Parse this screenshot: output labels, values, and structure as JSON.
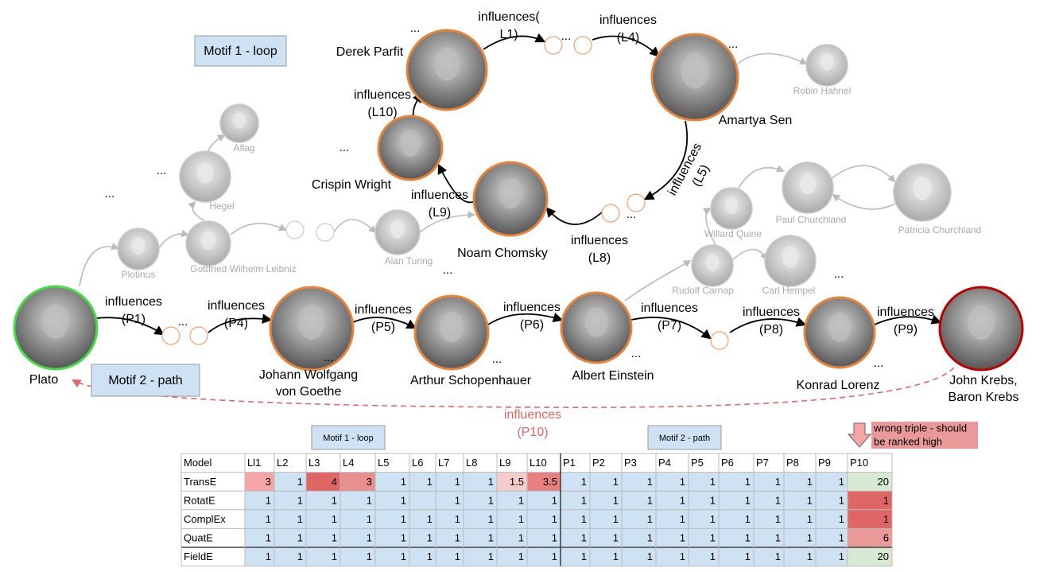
{
  "motifs": [
    "Motif 1 - loop",
    "Motif 2 - path"
  ],
  "ellipsis": "...",
  "nodes": [
    {
      "label": [
        "Plato"
      ]
    },
    {
      "label": [
        "Johann Wolfgang",
        "von Goethe"
      ]
    },
    {
      "label": [
        "Arthur Schopenhauer"
      ]
    },
    {
      "label": [
        "Albert Einstein"
      ]
    },
    {
      "label": [
        "Konrad Lorenz"
      ]
    },
    {
      "label": [
        "John Krebs,",
        "Baron Krebs"
      ]
    },
    {
      "label": [
        "Derek Parfit"
      ]
    },
    {
      "label": [
        "Amartya Sen"
      ]
    },
    {
      "label": [
        "Crispin Wright"
      ]
    },
    {
      "label": [
        "Noam Chomsky"
      ]
    },
    {
      "label": [
        "Robin Hahnel"
      ]
    },
    {
      "label": [
        "Aflag"
      ]
    },
    {
      "label": [
        "Hegel"
      ]
    },
    {
      "label": [
        "Plotinus"
      ]
    },
    {
      "label": [
        "Gottfried Wilhelm Leibniz"
      ]
    },
    {
      "label": [
        "Alan Turing"
      ]
    },
    {
      "label": [
        "Willard Quine"
      ]
    },
    {
      "label": [
        "Paul Churchland"
      ]
    },
    {
      "label": [
        "Patricia Churchland"
      ]
    },
    {
      "label": [
        "Rudolf Carnap"
      ]
    },
    {
      "label": [
        "Carl Hempel"
      ]
    }
  ],
  "edges": [
    {
      "lines": [
        "influences",
        "(P1)"
      ]
    },
    {
      "lines": [
        "influences",
        "(P4)"
      ]
    },
    {
      "lines": [
        "influences",
        "(P5)"
      ]
    },
    {
      "lines": [
        "influences",
        "(P6)"
      ]
    },
    {
      "lines": [
        "influences",
        "(P7)"
      ]
    },
    {
      "lines": [
        "influences",
        "(P8)"
      ]
    },
    {
      "lines": [
        "influences",
        "(P9)"
      ]
    },
    {
      "lines": [
        "influences(",
        "L1)"
      ]
    },
    {
      "lines": [
        "influences",
        "(L4)"
      ]
    },
    {
      "lines": [
        "influences",
        "(L5)"
      ]
    },
    {
      "lines": [
        "influences",
        "(L8)"
      ]
    },
    {
      "lines": [
        "influences",
        "(L9)"
      ]
    },
    {
      "lines": [
        "influences",
        "(L10)"
      ]
    },
    {
      "lines": [
        "influences",
        "(P10)"
      ]
    }
  ],
  "note": [
    "wrong triple - should",
    "be ranked high"
  ],
  "table": {
    "header": [
      "Model",
      "Ll1",
      "L2",
      "L3",
      "L4",
      "L5",
      "L6",
      "L7",
      "L8",
      "L9",
      "L10",
      "P1",
      "P2",
      "P3",
      "P4",
      "P5",
      "P6",
      "P7",
      "P8",
      "P9",
      "P10"
    ],
    "rows": [
      [
        "TransE",
        3,
        1,
        4,
        3,
        1,
        1,
        1,
        1,
        1.5,
        3.5,
        1,
        1,
        1,
        1,
        1,
        1,
        1,
        1,
        1,
        20
      ],
      [
        "RotatE",
        1,
        1,
        1,
        1,
        1,
        null,
        1,
        1,
        1,
        1,
        1,
        1,
        1,
        1,
        1,
        1,
        1,
        1,
        1,
        1
      ],
      [
        "ComplEx",
        1,
        1,
        1,
        1,
        1,
        1,
        1,
        1,
        1,
        1,
        1,
        1,
        1,
        1,
        1,
        1,
        1,
        1,
        1,
        1
      ],
      [
        "QuatE",
        1,
        1,
        1,
        1,
        1,
        1,
        1,
        1,
        1,
        1,
        1,
        1,
        1,
        1,
        1,
        1,
        1,
        1,
        1,
        6
      ],
      [
        "FieldE",
        1,
        1,
        1,
        1,
        1,
        1,
        1,
        1,
        1,
        1,
        1,
        1,
        1,
        1,
        1,
        1,
        1,
        1,
        1,
        20
      ]
    ]
  }
}
